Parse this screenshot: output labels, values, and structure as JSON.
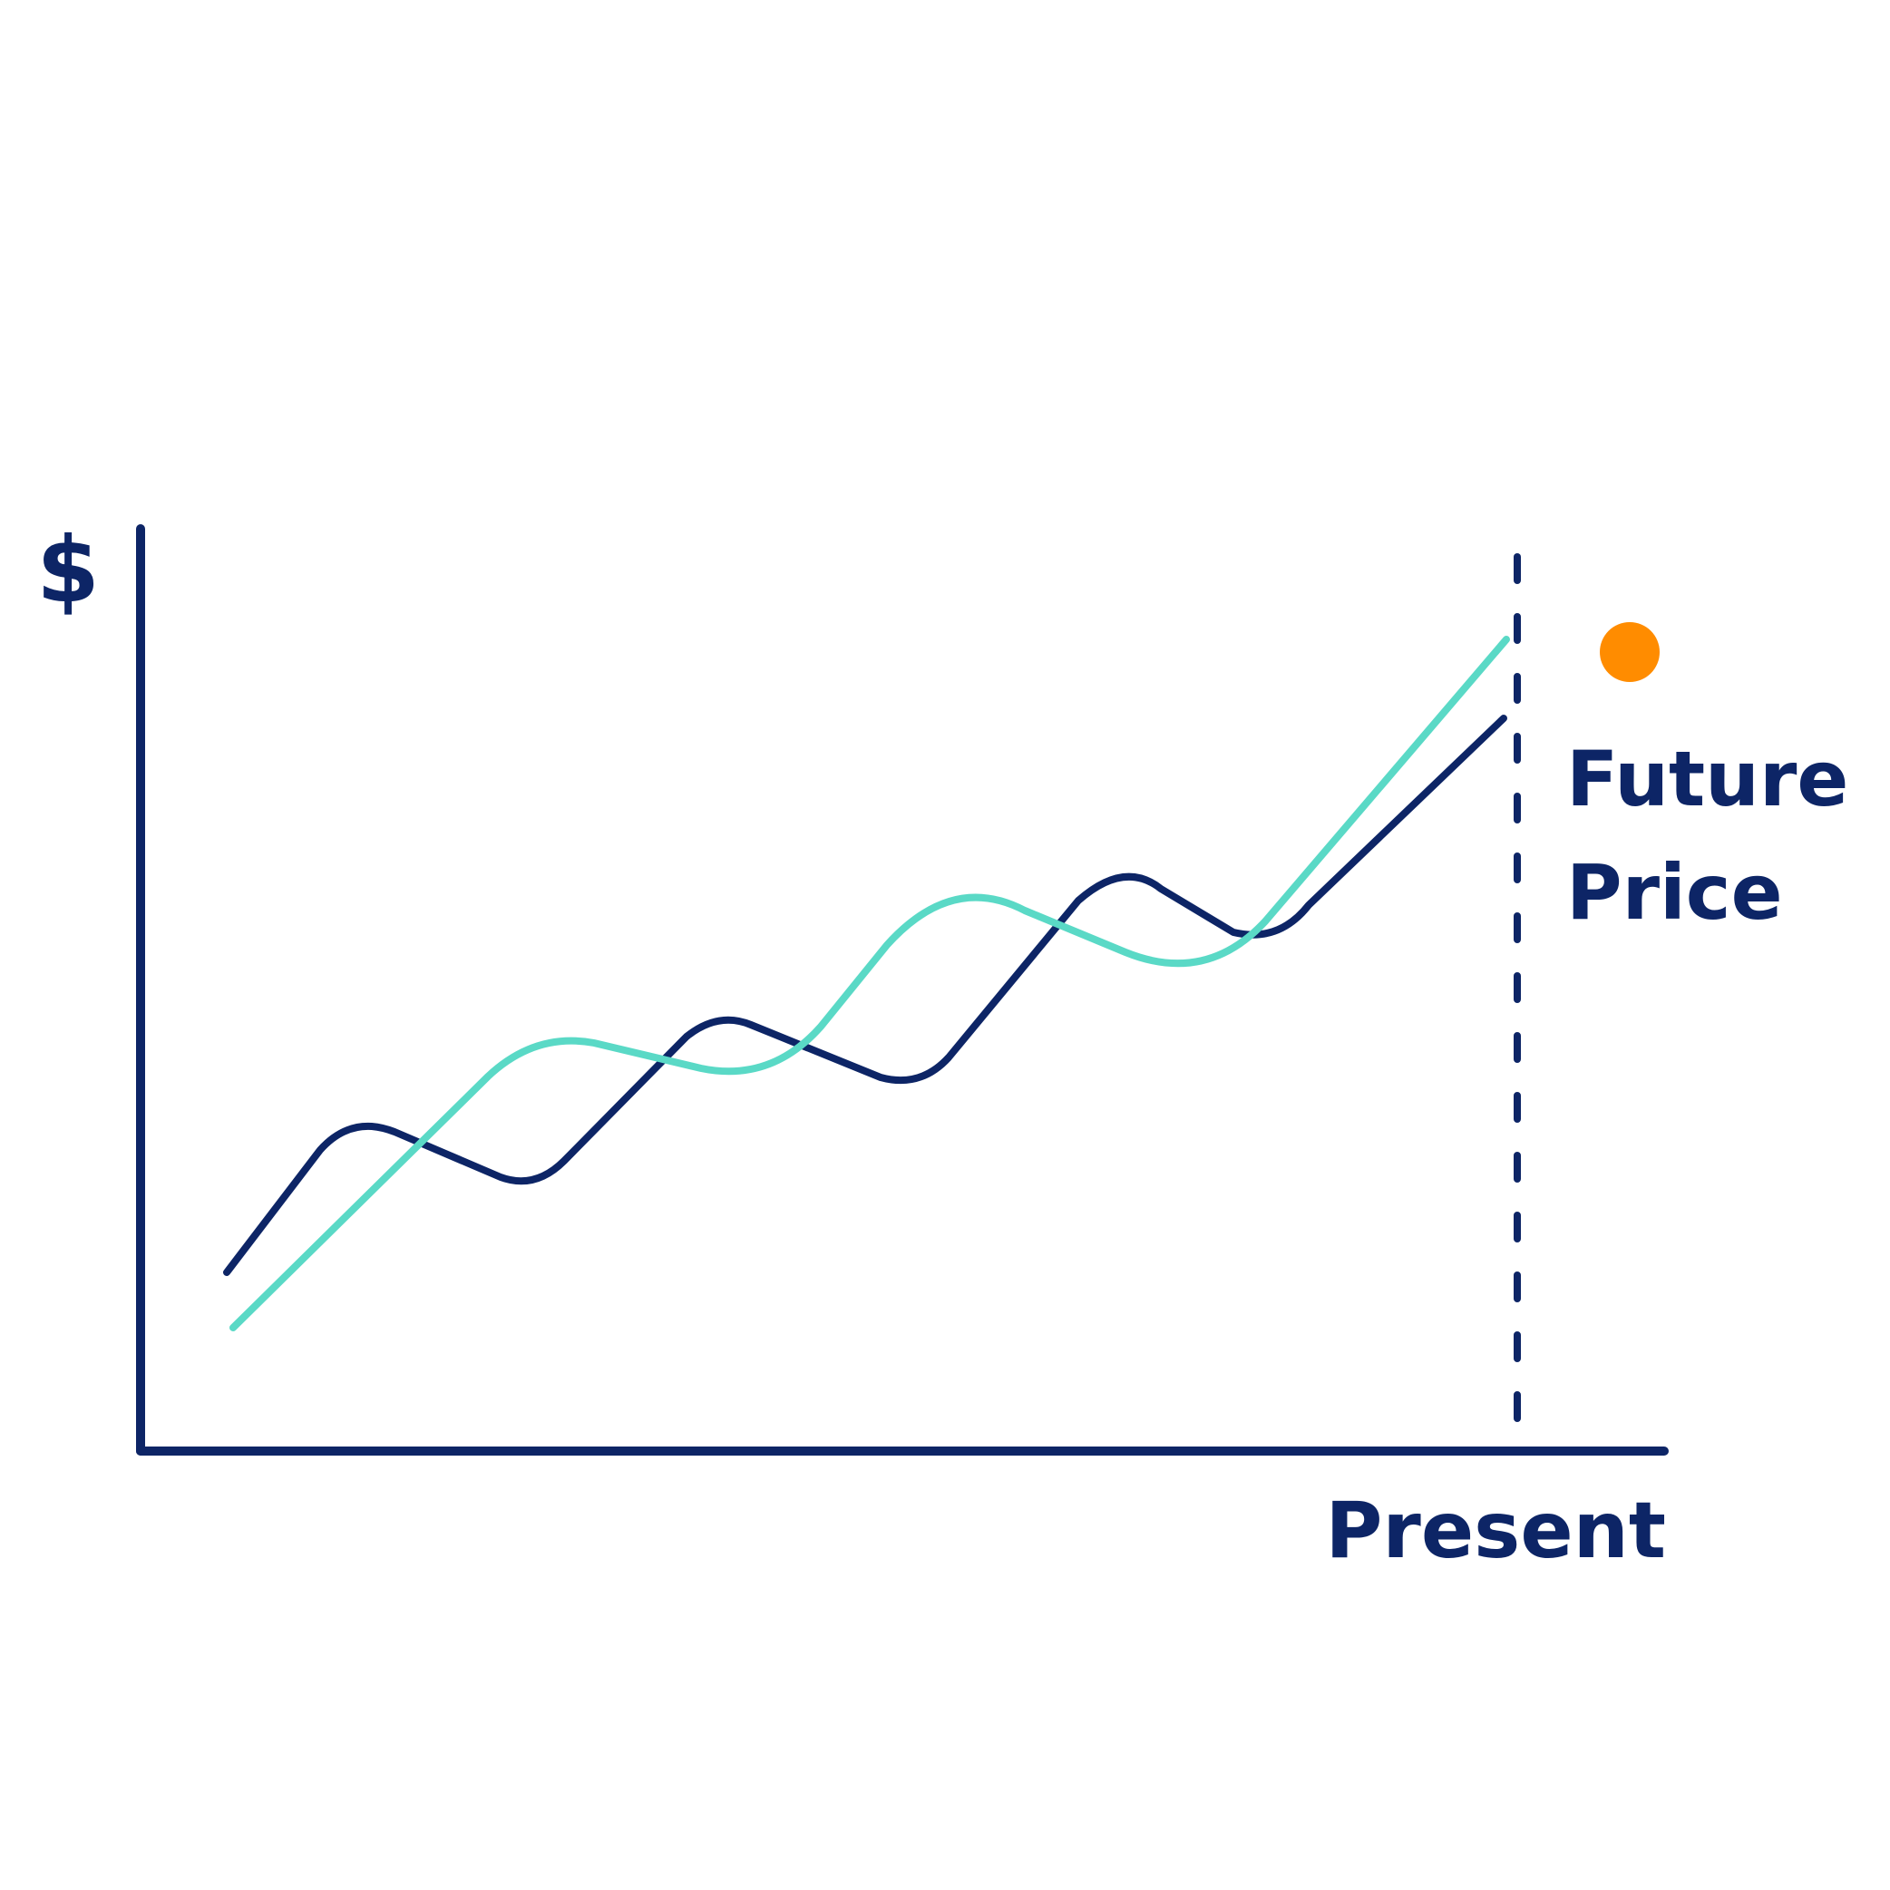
{
  "labels": {
    "y_axis": "$",
    "x_axis": "Present",
    "future_line_1": "Future",
    "future_line_2": "Price"
  },
  "colors": {
    "navy": "#0d2566",
    "teal": "#5ad9c6",
    "orange": "#ff8c00",
    "background": "#ffffff"
  },
  "elements": {
    "dashed_marker": "present boundary",
    "future_point": "future price dot"
  }
}
